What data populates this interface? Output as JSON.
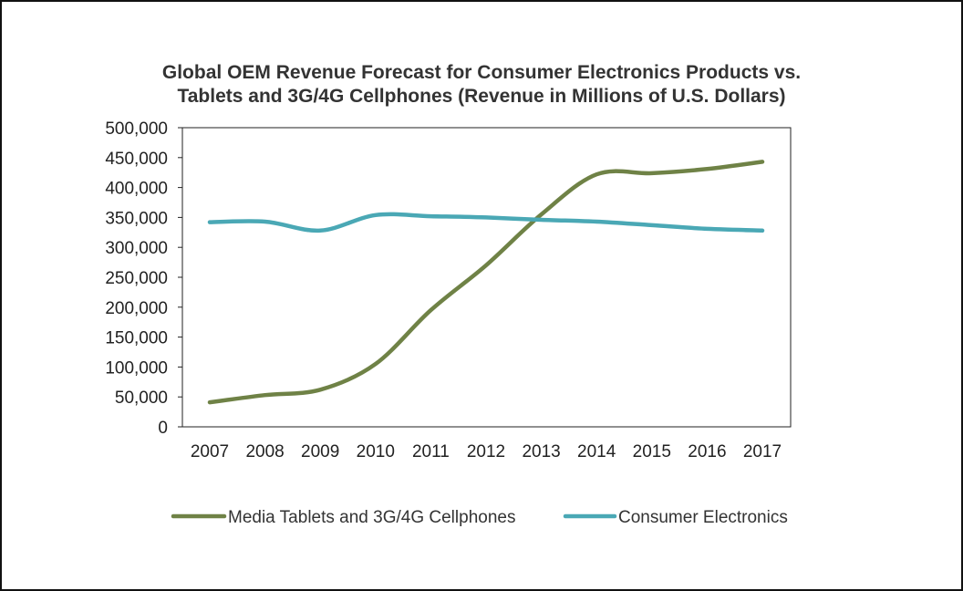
{
  "chart_data": {
    "type": "line",
    "title_line1": "Global OEM Revenue Forecast for Consumer Electronics Products vs.",
    "title_line2": "Tablets and 3G/4G Cellphones (Revenue in Millions of U.S. Dollars)",
    "xlabel": "",
    "ylabel": "",
    "categories": [
      "2007",
      "2008",
      "2009",
      "2010",
      "2011",
      "2012",
      "2013",
      "2014",
      "2015",
      "2016",
      "2017"
    ],
    "ylim": [
      0,
      500000
    ],
    "yticks": [
      0,
      50000,
      100000,
      150000,
      200000,
      250000,
      300000,
      350000,
      400000,
      450000,
      500000
    ],
    "ytick_labels": [
      "0",
      "50,000",
      "100,000",
      "150,000",
      "200,000",
      "250,000",
      "300,000",
      "350,000",
      "400,000",
      "450,000",
      "500,000"
    ],
    "grid": false,
    "legend_position": "bottom",
    "series": [
      {
        "name": "Media Tablets and 3G/4G Cellphones",
        "color": "#6f8246",
        "values": [
          41000,
          53000,
          62000,
          105000,
          195000,
          270000,
          355000,
          422000,
          424000,
          431000,
          443000
        ]
      },
      {
        "name": "Consumer Electronics",
        "color": "#4aa8b5",
        "values": [
          342000,
          343000,
          328000,
          354000,
          352000,
          350000,
          346000,
          343000,
          337000,
          331000,
          328000
        ]
      }
    ]
  }
}
